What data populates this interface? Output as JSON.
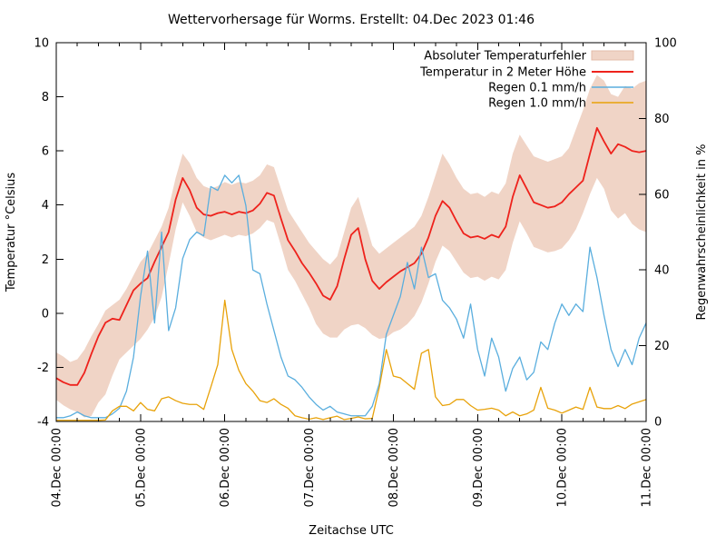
{
  "chart_data": {
    "type": "line",
    "title": "Wettervorhersage für Worms. Erstellt: 04.Dec 2023 01:46",
    "xlabel": "Zeitachse UTC",
    "ylabel_left": "Temperatur °Celsius",
    "ylabel_right": "Regenwahrscheinlichkeit in %",
    "ylim_left": [
      -4,
      10
    ],
    "ylim_right": [
      0,
      100
    ],
    "yticks_left": [
      -4,
      -2,
      0,
      2,
      4,
      6,
      8,
      10
    ],
    "yticks_right": [
      0,
      20,
      40,
      60,
      80,
      100
    ],
    "xtick_labels": [
      "04.Dec 00:00",
      "05.Dec 00:00",
      "06.Dec 00:00",
      "07.Dec 00:00",
      "08.Dec 00:00",
      "09.Dec 00:00",
      "10.Dec 00:00",
      "11.Dec 00:00"
    ],
    "x_range_hours": [
      0,
      168
    ],
    "x_step_hours": 2,
    "x_minor_tick_hours": 6,
    "grid": false,
    "legend_position": "top-right-inside",
    "legend": [
      {
        "key": "temperature_error",
        "label": "Absoluter Temperaturfehler",
        "style": "band",
        "color": "#f0d4c6"
      },
      {
        "key": "temperature_2m",
        "label": "Temperatur in 2 Meter Höhe",
        "style": "line",
        "color": "#ee221c"
      },
      {
        "key": "rain_01mmh",
        "label": "Regen 0.1 mm/h",
        "style": "line",
        "color": "#5aaede"
      },
      {
        "key": "rain_10mmh",
        "label": "Regen 1.0 mm/h",
        "style": "line",
        "color": "#e8a20a"
      }
    ],
    "series": [
      {
        "key": "temperature_error",
        "name": "Absoluter Temperaturfehler",
        "type": "band",
        "axis": "left",
        "fill": "#f0d4c6",
        "lower": [
          -3.2,
          -3.4,
          -3.55,
          -3.65,
          -3.85,
          -3.8,
          -3.3,
          -3.0,
          -2.3,
          -1.7,
          -1.45,
          -1.2,
          -0.95,
          -0.6,
          -0.15,
          0.6,
          1.8,
          3.1,
          4.1,
          3.6,
          3.0,
          2.8,
          2.7,
          2.8,
          2.9,
          2.8,
          2.9,
          2.85,
          2.95,
          3.15,
          3.45,
          3.35,
          2.5,
          1.6,
          1.2,
          0.7,
          0.2,
          -0.4,
          -0.75,
          -0.9,
          -0.9,
          -0.6,
          -0.45,
          -0.4,
          -0.55,
          -0.8,
          -0.95,
          -0.9,
          -0.7,
          -0.6,
          -0.4,
          -0.1,
          0.4,
          1.1,
          1.9,
          2.5,
          2.3,
          1.9,
          1.5,
          1.3,
          1.35,
          1.2,
          1.35,
          1.25,
          1.6,
          2.6,
          3.4,
          2.95,
          2.45,
          2.35,
          2.25,
          2.3,
          2.4,
          2.7,
          3.1,
          3.7,
          4.4,
          5.0,
          4.6,
          3.8,
          3.5,
          3.7,
          3.3,
          3.1,
          3.0
        ],
        "upper": [
          -1.45,
          -1.6,
          -1.8,
          -1.7,
          -1.35,
          -0.85,
          -0.4,
          0.1,
          0.3,
          0.5,
          0.9,
          1.4,
          1.9,
          2.2,
          2.7,
          3.2,
          3.9,
          5.0,
          5.9,
          5.55,
          5.0,
          4.7,
          4.6,
          4.7,
          4.85,
          4.75,
          4.85,
          4.8,
          4.9,
          5.1,
          5.5,
          5.4,
          4.6,
          3.8,
          3.4,
          3.0,
          2.6,
          2.3,
          2.0,
          1.8,
          2.1,
          3.0,
          3.9,
          4.3,
          3.4,
          2.5,
          2.2,
          2.4,
          2.6,
          2.8,
          3.0,
          3.2,
          3.6,
          4.3,
          5.1,
          5.9,
          5.5,
          5.0,
          4.6,
          4.4,
          4.45,
          4.3,
          4.5,
          4.4,
          4.8,
          5.9,
          6.6,
          6.2,
          5.8,
          5.7,
          5.6,
          5.7,
          5.8,
          6.1,
          6.8,
          7.5,
          8.3,
          8.8,
          8.6,
          8.1,
          8.0,
          8.4,
          8.3,
          8.5,
          8.6
        ]
      },
      {
        "key": "temperature_2m",
        "name": "Temperatur in 2 Meter Höhe",
        "type": "line",
        "axis": "left",
        "color": "#ee221c",
        "width": 1.8,
        "values": [
          -2.4,
          -2.55,
          -2.65,
          -2.65,
          -2.2,
          -1.5,
          -0.85,
          -0.35,
          -0.2,
          -0.25,
          0.3,
          0.85,
          1.1,
          1.3,
          1.9,
          2.45,
          3.0,
          4.2,
          5.0,
          4.55,
          3.9,
          3.65,
          3.6,
          3.7,
          3.75,
          3.65,
          3.75,
          3.7,
          3.8,
          4.05,
          4.45,
          4.35,
          3.5,
          2.7,
          2.3,
          1.85,
          1.5,
          1.1,
          0.65,
          0.5,
          1.0,
          2.0,
          2.9,
          3.15,
          2.0,
          1.2,
          0.9,
          1.15,
          1.35,
          1.55,
          1.7,
          1.85,
          2.2,
          2.8,
          3.6,
          4.15,
          3.9,
          3.4,
          2.95,
          2.8,
          2.85,
          2.75,
          2.9,
          2.8,
          3.2,
          4.3,
          5.1,
          4.6,
          4.1,
          4.0,
          3.9,
          3.95,
          4.1,
          4.4,
          4.65,
          4.9,
          5.9,
          6.85,
          6.35,
          5.9,
          6.25,
          6.15,
          6.0,
          5.95,
          6.0
        ]
      },
      {
        "key": "rain_01mmh",
        "name": "Regen 0.1 mm/h",
        "type": "line",
        "axis": "right",
        "color": "#5aaede",
        "width": 1.3,
        "values": [
          1,
          1,
          1.5,
          2.5,
          1.5,
          1,
          1,
          1,
          2,
          3.5,
          8,
          17,
          33,
          45,
          26,
          50,
          24,
          30,
          43,
          48,
          50,
          49,
          62,
          61,
          65,
          63,
          65,
          57,
          40,
          39,
          31,
          24,
          17,
          12,
          11,
          9,
          6.5,
          4.5,
          3,
          4,
          2.5,
          2,
          1.5,
          1.5,
          1.5,
          4,
          10,
          23,
          28,
          33,
          42,
          35,
          46,
          38,
          39,
          32,
          30,
          27,
          22,
          31,
          19,
          12,
          22,
          17,
          8,
          14,
          17,
          11,
          13,
          21,
          19,
          26,
          31,
          28,
          31,
          29,
          46,
          38,
          28,
          19,
          14.5,
          19,
          15,
          22,
          26
        ]
      },
      {
        "key": "rain_10mmh",
        "name": "Regen 1.0 mm/h",
        "type": "line",
        "axis": "right",
        "color": "#e8a20a",
        "width": 1.3,
        "values": [
          0.3,
          0.3,
          0.3,
          0.3,
          0.3,
          0.3,
          0.3,
          0.4,
          2.8,
          4,
          4,
          2.8,
          5,
          3.2,
          2.8,
          6,
          6.5,
          5.5,
          4.8,
          4.5,
          4.5,
          3.2,
          9,
          15,
          32,
          19,
          13.5,
          10,
          8,
          5.5,
          5,
          6,
          4.5,
          3.5,
          1.5,
          1,
          0.6,
          1,
          0.5,
          1,
          1.4,
          0.5,
          0.8,
          1.2,
          0.7,
          0.8,
          9,
          19,
          12,
          11.5,
          10,
          8.5,
          18,
          19,
          6.5,
          4.2,
          4.5,
          5.8,
          5.8,
          4.2,
          3,
          3.2,
          3.5,
          3,
          1.5,
          2.5,
          1.5,
          2,
          3,
          9,
          3.5,
          3,
          2.2,
          3,
          3.8,
          3.2,
          9,
          3.8,
          3.4,
          3.4,
          4.2,
          3.4,
          4.6,
          5.2,
          5.8
        ]
      }
    ]
  }
}
